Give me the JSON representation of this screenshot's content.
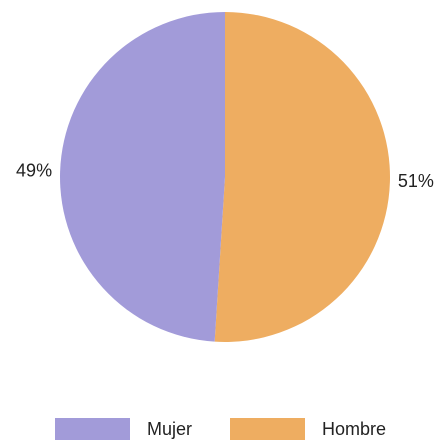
{
  "chart_data": {
    "type": "pie",
    "categories": [
      "Mujer",
      "Hombre"
    ],
    "values": [
      49,
      51
    ],
    "value_labels": [
      "49%",
      "51%"
    ],
    "colors": [
      "#a29bd9",
      "#eead61"
    ]
  }
}
